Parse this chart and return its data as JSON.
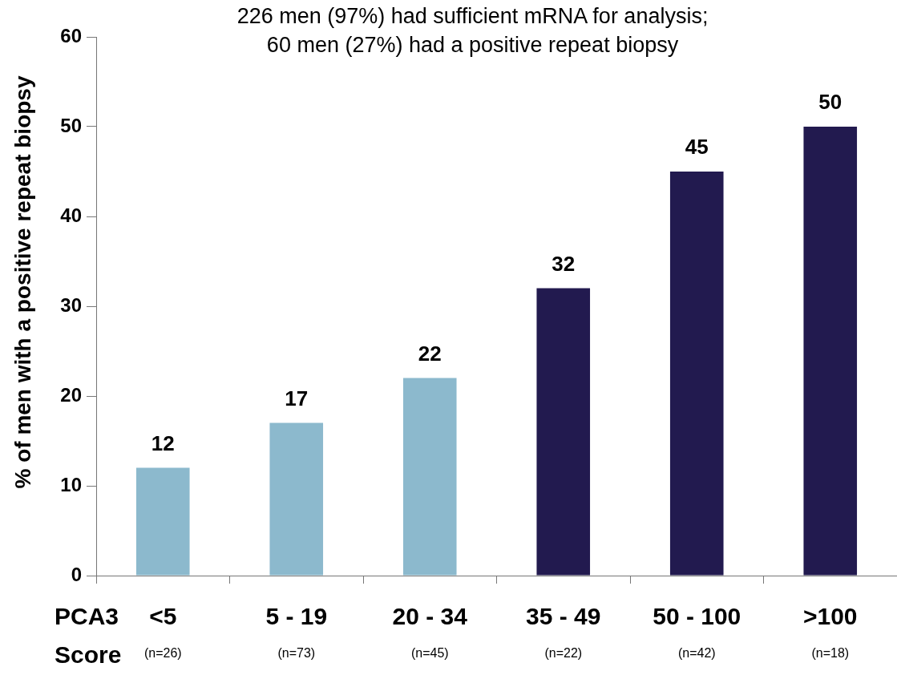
{
  "chart_data": {
    "type": "bar",
    "title": "226 men (97%) had sufficient mRNA for analysis;\n60 men (27%) had a positive repeat biopsy",
    "xlabel": "PCA3\nScore",
    "ylabel": "% of men with a positive repeat biopsy",
    "categories": [
      "<5\n(n=26)",
      "5 - 19\n(n=73)",
      "20 - 34\n(n=45)",
      "35 - 49\n(n=22)",
      "50 - 100\n(n=42)",
      ">100\n(n=18)"
    ],
    "values": [
      12,
      17,
      22,
      32,
      45,
      50
    ],
    "colors": [
      "#8cb9cd",
      "#8cb9cd",
      "#8cb9cd",
      "#221a4f",
      "#221a4f",
      "#221a4f"
    ],
    "ylim": [
      0,
      60
    ],
    "yticks": [
      0,
      10,
      20,
      30,
      40,
      50,
      60
    ],
    "grid": false,
    "legend": false,
    "data_labels": true
  }
}
